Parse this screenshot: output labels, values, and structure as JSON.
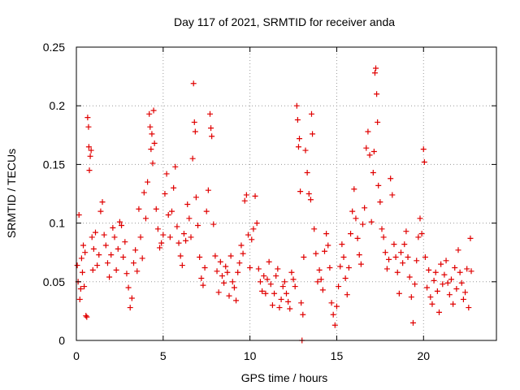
{
  "chart_data": {
    "type": "scatter",
    "title": "Day 117 of 2021, SRMTID for receiver anda",
    "xlabel": "GPS time / hours",
    "ylabel": "SRMTID / TECUs",
    "xlim": [
      0,
      24.2
    ],
    "ylim": [
      0,
      0.25
    ],
    "x_ticks": [
      0,
      5,
      10,
      15,
      20
    ],
    "x_tick_labels": [
      "0",
      "5",
      "10",
      "15",
      "20"
    ],
    "y_ticks": [
      0,
      0.05,
      0.1,
      0.15,
      0.2,
      0.25
    ],
    "y_tick_labels": [
      "0",
      "0.05",
      "0.1",
      "0.15",
      "0.2",
      "0.25"
    ],
    "grid": true,
    "marker": "+",
    "color": "#e00000",
    "series": [
      {
        "name": "SRMTID",
        "points": [
          [
            0.05,
            0.064
          ],
          [
            0.1,
            0.05
          ],
          [
            0.15,
            0.107
          ],
          [
            0.2,
            0.035
          ],
          [
            0.25,
            0.044
          ],
          [
            0.3,
            0.07
          ],
          [
            0.35,
            0.058
          ],
          [
            0.4,
            0.081
          ],
          [
            0.45,
            0.046
          ],
          [
            0.5,
            0.075
          ],
          [
            0.55,
            0.021
          ],
          [
            0.6,
            0.02
          ],
          [
            0.65,
            0.19
          ],
          [
            0.7,
            0.182
          ],
          [
            0.72,
            0.165
          ],
          [
            0.75,
            0.145
          ],
          [
            0.8,
            0.157
          ],
          [
            0.85,
            0.162
          ],
          [
            0.9,
            0.088
          ],
          [
            0.95,
            0.06
          ],
          [
            1.0,
            0.078
          ],
          [
            1.1,
            0.092
          ],
          [
            1.2,
            0.064
          ],
          [
            1.3,
            0.073
          ],
          [
            1.4,
            0.11
          ],
          [
            1.5,
            0.118
          ],
          [
            1.6,
            0.09
          ],
          [
            1.7,
            0.081
          ],
          [
            1.8,
            0.066
          ],
          [
            1.9,
            0.054
          ],
          [
            2.0,
            0.073
          ],
          [
            2.1,
            0.096
          ],
          [
            2.2,
            0.088
          ],
          [
            2.3,
            0.06
          ],
          [
            2.4,
            0.078
          ],
          [
            2.5,
            0.101
          ],
          [
            2.6,
            0.098
          ],
          [
            2.7,
            0.071
          ],
          [
            2.8,
            0.084
          ],
          [
            2.9,
            0.057
          ],
          [
            3.0,
            0.045
          ],
          [
            3.1,
            0.028
          ],
          [
            3.2,
            0.036
          ],
          [
            3.3,
            0.066
          ],
          [
            3.4,
            0.077
          ],
          [
            3.5,
            0.059
          ],
          [
            3.6,
            0.112
          ],
          [
            3.7,
            0.088
          ],
          [
            3.8,
            0.07
          ],
          [
            3.9,
            0.126
          ],
          [
            4.0,
            0.104
          ],
          [
            4.1,
            0.135
          ],
          [
            4.2,
            0.193
          ],
          [
            4.25,
            0.182
          ],
          [
            4.3,
            0.163
          ],
          [
            4.35,
            0.176
          ],
          [
            4.4,
            0.151
          ],
          [
            4.45,
            0.196
          ],
          [
            4.5,
            0.168
          ],
          [
            4.6,
            0.112
          ],
          [
            4.7,
            0.095
          ],
          [
            4.8,
            0.079
          ],
          [
            4.9,
            0.083
          ],
          [
            5.0,
            0.09
          ],
          [
            5.1,
            0.125
          ],
          [
            5.2,
            0.142
          ],
          [
            5.3,
            0.107
          ],
          [
            5.4,
            0.088
          ],
          [
            5.5,
            0.11
          ],
          [
            5.6,
            0.13
          ],
          [
            5.7,
            0.148
          ],
          [
            5.8,
            0.097
          ],
          [
            5.9,
            0.083
          ],
          [
            6.0,
            0.072
          ],
          [
            6.1,
            0.064
          ],
          [
            6.2,
            0.091
          ],
          [
            6.3,
            0.085
          ],
          [
            6.4,
            0.116
          ],
          [
            6.5,
            0.104
          ],
          [
            6.6,
            0.088
          ],
          [
            6.7,
            0.155
          ],
          [
            6.75,
            0.219
          ],
          [
            6.8,
            0.186
          ],
          [
            6.85,
            0.178
          ],
          [
            6.9,
            0.122
          ],
          [
            7.0,
            0.098
          ],
          [
            7.1,
            0.071
          ],
          [
            7.2,
            0.053
          ],
          [
            7.3,
            0.047
          ],
          [
            7.4,
            0.062
          ],
          [
            7.5,
            0.11
          ],
          [
            7.6,
            0.128
          ],
          [
            7.7,
            0.193
          ],
          [
            7.75,
            0.181
          ],
          [
            7.8,
            0.174
          ],
          [
            7.9,
            0.099
          ],
          [
            8.0,
            0.072
          ],
          [
            8.1,
            0.059
          ],
          [
            8.2,
            0.041
          ],
          [
            8.3,
            0.067
          ],
          [
            8.4,
            0.055
          ],
          [
            8.5,
            0.049
          ],
          [
            8.6,
            0.063
          ],
          [
            8.7,
            0.058
          ],
          [
            8.8,
            0.038
          ],
          [
            8.9,
            0.072
          ],
          [
            9.0,
            0.05
          ],
          [
            9.1,
            0.045
          ],
          [
            9.2,
            0.034
          ],
          [
            9.3,
            0.058
          ],
          [
            9.4,
            0.066
          ],
          [
            9.5,
            0.081
          ],
          [
            9.6,
            0.074
          ],
          [
            9.7,
            0.119
          ],
          [
            9.8,
            0.124
          ],
          [
            9.9,
            0.09
          ],
          [
            10.0,
            0.062
          ],
          [
            10.1,
            0.086
          ],
          [
            10.2,
            0.095
          ],
          [
            10.3,
            0.123
          ],
          [
            10.4,
            0.1
          ],
          [
            10.5,
            0.061
          ],
          [
            10.6,
            0.05
          ],
          [
            10.7,
            0.042
          ],
          [
            10.8,
            0.055
          ],
          [
            10.9,
            0.04
          ],
          [
            11.0,
            0.052
          ],
          [
            11.1,
            0.067
          ],
          [
            11.2,
            0.048
          ],
          [
            11.3,
            0.03
          ],
          [
            11.4,
            0.04
          ],
          [
            11.5,
            0.055
          ],
          [
            11.6,
            0.061
          ],
          [
            11.7,
            0.028
          ],
          [
            11.8,
            0.035
          ],
          [
            11.9,
            0.046
          ],
          [
            12.0,
            0.05
          ],
          [
            12.1,
            0.04
          ],
          [
            12.2,
            0.033
          ],
          [
            12.3,
            0.027
          ],
          [
            12.4,
            0.058
          ],
          [
            12.5,
            0.052
          ],
          [
            12.6,
            0.046
          ],
          [
            12.7,
            0.2
          ],
          [
            12.75,
            0.188
          ],
          [
            12.8,
            0.165
          ],
          [
            12.85,
            0.172
          ],
          [
            12.9,
            0.127
          ],
          [
            12.95,
            0.032
          ],
          [
            13.0,
            0.0
          ],
          [
            13.05,
            0.022
          ],
          [
            13.1,
            0.071
          ],
          [
            13.2,
            0.162
          ],
          [
            13.3,
            0.143
          ],
          [
            13.4,
            0.125
          ],
          [
            13.5,
            0.12
          ],
          [
            13.55,
            0.193
          ],
          [
            13.6,
            0.176
          ],
          [
            13.7,
            0.095
          ],
          [
            13.8,
            0.074
          ],
          [
            13.9,
            0.05
          ],
          [
            14.0,
            0.06
          ],
          [
            14.1,
            0.052
          ],
          [
            14.2,
            0.043
          ],
          [
            14.3,
            0.076
          ],
          [
            14.4,
            0.091
          ],
          [
            14.5,
            0.081
          ],
          [
            14.6,
            0.062
          ],
          [
            14.7,
            0.032
          ],
          [
            14.8,
            0.022
          ],
          [
            14.9,
            0.013
          ],
          [
            15.0,
            0.029
          ],
          [
            15.1,
            0.046
          ],
          [
            15.2,
            0.063
          ],
          [
            15.3,
            0.082
          ],
          [
            15.4,
            0.071
          ],
          [
            15.5,
            0.053
          ],
          [
            15.6,
            0.039
          ],
          [
            15.7,
            0.062
          ],
          [
            15.8,
            0.091
          ],
          [
            15.9,
            0.11
          ],
          [
            16.0,
            0.129
          ],
          [
            16.1,
            0.104
          ],
          [
            16.2,
            0.087
          ],
          [
            16.3,
            0.073
          ],
          [
            16.4,
            0.065
          ],
          [
            16.5,
            0.099
          ],
          [
            16.6,
            0.113
          ],
          [
            16.7,
            0.164
          ],
          [
            16.8,
            0.178
          ],
          [
            16.9,
            0.158
          ],
          [
            17.0,
            0.101
          ],
          [
            17.1,
            0.143
          ],
          [
            17.15,
            0.161
          ],
          [
            17.2,
            0.228
          ],
          [
            17.25,
            0.232
          ],
          [
            17.3,
            0.21
          ],
          [
            17.35,
            0.186
          ],
          [
            17.4,
            0.132
          ],
          [
            17.5,
            0.118
          ],
          [
            17.6,
            0.095
          ],
          [
            17.7,
            0.088
          ],
          [
            17.8,
            0.075
          ],
          [
            17.9,
            0.061
          ],
          [
            18.0,
            0.069
          ],
          [
            18.1,
            0.138
          ],
          [
            18.2,
            0.124
          ],
          [
            18.3,
            0.082
          ],
          [
            18.4,
            0.071
          ],
          [
            18.5,
            0.058
          ],
          [
            18.6,
            0.04
          ],
          [
            18.7,
            0.075
          ],
          [
            18.8,
            0.066
          ],
          [
            18.9,
            0.082
          ],
          [
            19.0,
            0.093
          ],
          [
            19.1,
            0.071
          ],
          [
            19.2,
            0.054
          ],
          [
            19.3,
            0.037
          ],
          [
            19.4,
            0.015
          ],
          [
            19.5,
            0.048
          ],
          [
            19.6,
            0.068
          ],
          [
            19.7,
            0.088
          ],
          [
            19.8,
            0.104
          ],
          [
            19.9,
            0.091
          ],
          [
            20.0,
            0.163
          ],
          [
            20.05,
            0.152
          ],
          [
            20.1,
            0.071
          ],
          [
            20.2,
            0.045
          ],
          [
            20.3,
            0.06
          ],
          [
            20.4,
            0.037
          ],
          [
            20.5,
            0.031
          ],
          [
            20.6,
            0.051
          ],
          [
            20.7,
            0.058
          ],
          [
            20.8,
            0.042
          ],
          [
            20.9,
            0.024
          ],
          [
            21.0,
            0.065
          ],
          [
            21.1,
            0.048
          ],
          [
            21.2,
            0.056
          ],
          [
            21.3,
            0.068
          ],
          [
            21.4,
            0.049
          ],
          [
            21.5,
            0.039
          ],
          [
            21.6,
            0.052
          ],
          [
            21.7,
            0.031
          ],
          [
            21.8,
            0.062
          ],
          [
            21.9,
            0.044
          ],
          [
            22.0,
            0.077
          ],
          [
            22.1,
            0.058
          ],
          [
            22.2,
            0.049
          ],
          [
            22.3,
            0.035
          ],
          [
            22.4,
            0.041
          ],
          [
            22.5,
            0.061
          ],
          [
            22.6,
            0.028
          ],
          [
            22.7,
            0.087
          ],
          [
            22.75,
            0.059
          ]
        ]
      }
    ]
  }
}
